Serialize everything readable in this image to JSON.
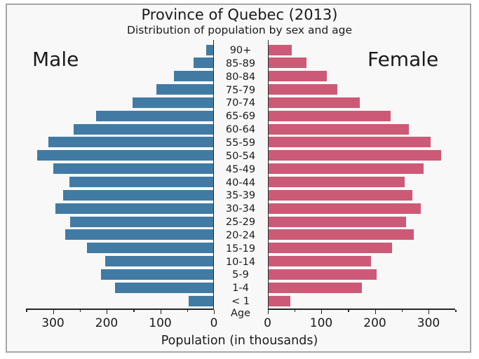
{
  "chart_data": {
    "type": "bar",
    "variant": "population-pyramid",
    "title": "Province of Quebec (2013)",
    "subtitle": "Distribution of population by sex and age",
    "left_group_label": "Male",
    "right_group_label": "Female",
    "age_axis_label": "Age",
    "xlabel": "Population (in thousands)",
    "categories": [
      "90+",
      "85-89",
      "80-84",
      "75-79",
      "70-74",
      "65-69",
      "60-64",
      "55-59",
      "50-54",
      "45-49",
      "40-44",
      "35-39",
      "30-34",
      "25-29",
      "20-24",
      "15-19",
      "10-14",
      "5-9",
      "1-4",
      "< 1"
    ],
    "series": [
      {
        "name": "Male",
        "side": "left",
        "color": "#417ba4",
        "values": [
          15,
          38,
          74,
          107,
          152,
          219,
          261,
          308,
          329,
          300,
          269,
          281,
          295,
          268,
          277,
          237,
          203,
          211,
          184,
          47
        ]
      },
      {
        "name": "Female",
        "side": "right",
        "color": "#cc5a76",
        "values": [
          45,
          73,
          110,
          130,
          172,
          229,
          263,
          304,
          324,
          291,
          255,
          270,
          285,
          258,
          273,
          232,
          193,
          203,
          176,
          43
        ]
      }
    ],
    "xlim": [
      0,
      350
    ],
    "major_ticks": [
      0,
      100,
      200,
      300
    ],
    "minor_ticks": [
      50,
      150,
      250,
      350
    ],
    "grid": false,
    "legend": "none",
    "colors": {
      "male": "#417ba4",
      "female": "#cc5a76",
      "plot_background": "#f8f8f8",
      "frame_border": "#a6a6a6",
      "axis": "#262626"
    }
  }
}
